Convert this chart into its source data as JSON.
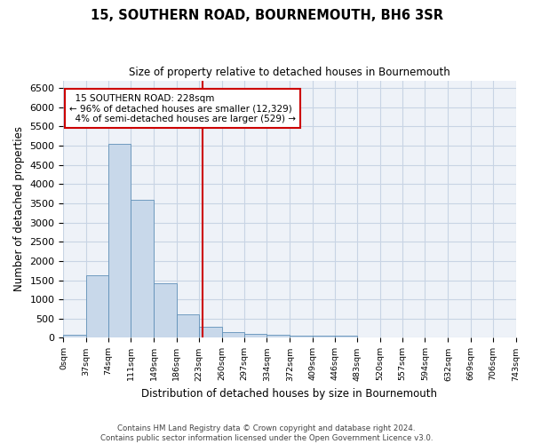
{
  "title": "15, SOUTHERN ROAD, BOURNEMOUTH, BH6 3SR",
  "subtitle": "Size of property relative to detached houses in Bournemouth",
  "xlabel": "Distribution of detached houses by size in Bournemouth",
  "ylabel": "Number of detached properties",
  "footer_line1": "Contains HM Land Registry data © Crown copyright and database right 2024.",
  "footer_line2": "Contains public sector information licensed under the Open Government Licence v3.0.",
  "property_label": "15 SOUTHERN ROAD: 228sqm",
  "pct_smaller": "96% of detached houses are smaller (12,329)",
  "pct_larger": "4% of semi-detached houses are larger (529)",
  "bin_edges": [
    0,
    37,
    74,
    111,
    149,
    186,
    223,
    260,
    297,
    334,
    372,
    409,
    446,
    483,
    520,
    557,
    594,
    632,
    669,
    706,
    743
  ],
  "bar_heights": [
    75,
    1630,
    5060,
    3600,
    1410,
    620,
    290,
    150,
    110,
    80,
    60,
    55,
    50,
    0,
    0,
    0,
    0,
    0,
    0,
    0
  ],
  "bar_color": "#c8d8ea",
  "bar_edgecolor": "#6090b8",
  "vline_x": 228,
  "vline_color": "#cc0000",
  "annotation_box_color": "#cc0000",
  "ylim": [
    0,
    6700
  ],
  "yticks": [
    0,
    500,
    1000,
    1500,
    2000,
    2500,
    3000,
    3500,
    4000,
    4500,
    5000,
    5500,
    6000,
    6500
  ],
  "grid_color": "#c8d4e4",
  "background_color": "#eef2f8"
}
